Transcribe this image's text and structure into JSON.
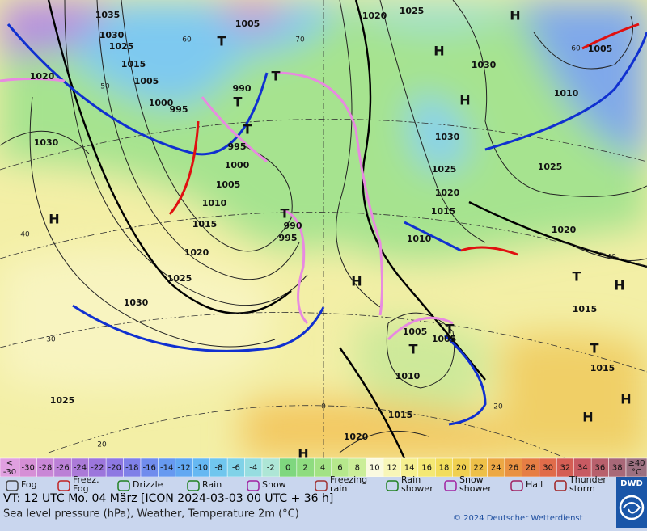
{
  "map": {
    "pressure_labels": [
      "1035",
      "1030",
      "1025",
      "1015",
      "1005",
      "1000",
      "995",
      "1020",
      "1030",
      "990",
      "995",
      "1000",
      "1005",
      "1010",
      "1015",
      "1020",
      "1025",
      "1030",
      "1025",
      "990",
      "995",
      "1005",
      "1020",
      "1025",
      "1030",
      "1010",
      "1005",
      "1030",
      "1025",
      "1020",
      "1015",
      "1010",
      "1025",
      "1020",
      "1015",
      "1015",
      "1005",
      "1005",
      "1010",
      "1015",
      "1020"
    ],
    "pressure_centers": [
      "H",
      "H",
      "H",
      "H",
      "H",
      "H",
      "H",
      "H",
      "H",
      "T",
      "T",
      "T",
      "T",
      "T",
      "T",
      "T",
      "T",
      "T"
    ],
    "grid_labels": [
      "60",
      "70",
      "50",
      "40",
      "30",
      "20",
      "0",
      "20",
      "40",
      "60"
    ]
  },
  "temperature_scale": {
    "low_end_symbol": "<",
    "low_end_value": "-30",
    "values": [
      -30,
      -28,
      -26,
      -24,
      -22,
      -20,
      -18,
      -16,
      -14,
      -12,
      -10,
      -8,
      -6,
      -4,
      -2,
      0,
      2,
      4,
      6,
      8,
      10,
      12,
      14,
      16,
      18,
      20,
      22,
      24,
      26,
      28,
      30,
      32,
      34,
      36,
      38
    ],
    "colors": [
      "#d68fd6",
      "#c987d6",
      "#bb80d6",
      "#ab7ad8",
      "#9c76dc",
      "#8e78e2",
      "#7f80e8",
      "#708ced",
      "#6699f0",
      "#62a8f2",
      "#66b8f2",
      "#70c6ee",
      "#80d2e8",
      "#96dde0",
      "#aee6d6",
      "#7fd77f",
      "#8fdc80",
      "#a2e284",
      "#b6e88c",
      "#cbee98",
      "#fafae0",
      "#f8f6b8",
      "#f6f090",
      "#f4e874",
      "#f2dd5c",
      "#f0d050",
      "#eec048",
      "#eca844",
      "#e99242",
      "#e67e44",
      "#e06c4a",
      "#d45e54",
      "#c85a62",
      "#b8606c",
      "#a86878"
    ],
    "high_end_value": "≥40",
    "high_end_unit": "°C"
  },
  "weather_legend": [
    [
      "Fog"
    ],
    [
      "Freez.",
      "Fog"
    ],
    [
      "Drizzle"
    ],
    [
      "Rain"
    ],
    [
      "Snow"
    ],
    [
      "Freezing",
      "rain"
    ],
    [
      "Rain",
      "shower"
    ],
    [
      "Snow",
      "shower"
    ],
    [
      "Hail"
    ],
    [
      "Thunder",
      "storm"
    ]
  ],
  "footer": {
    "valid_time": "VT: 12 UTC Mo.  04 März [ICON 2024-03-03  00 UTC + 36 h]",
    "description": "Sea level pressure (hPa), Weather, Temperature 2m (°C)",
    "copyright": "© 2024 Deutscher Wetterdienst",
    "logo": "DWD"
  }
}
